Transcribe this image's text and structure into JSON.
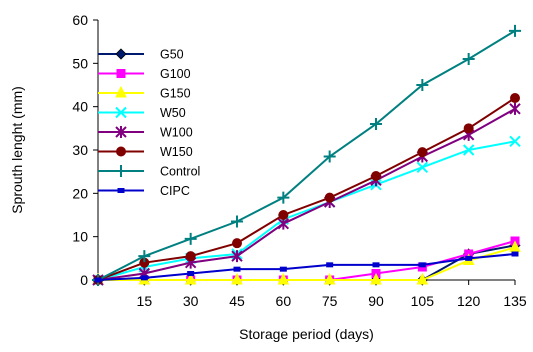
{
  "chart_data": {
    "type": "line",
    "title": "",
    "xlabel": "Storage period (days)",
    "ylabel": "Sprouth lenght (mm)",
    "ylim": [
      0,
      60
    ],
    "yticks": [
      "0",
      "10",
      "20",
      "30",
      "40",
      "50",
      "60"
    ],
    "x": [
      0,
      15,
      30,
      45,
      60,
      75,
      90,
      105,
      120,
      135
    ],
    "xtick_labels": [
      "",
      "15",
      "30",
      "45",
      "60",
      "75",
      "90",
      "105",
      "120",
      "135"
    ],
    "grid": false,
    "legend_position": "top-left",
    "series": [
      {
        "name": "G50",
        "color": "#001a6e",
        "marker": "diamond",
        "values": [
          0,
          0,
          0,
          0,
          0,
          0,
          0,
          0,
          6,
          8
        ]
      },
      {
        "name": "G100",
        "color": "#ff00ff",
        "marker": "square",
        "values": [
          0,
          0,
          0,
          0,
          0,
          0,
          1.5,
          3,
          6,
          9
        ]
      },
      {
        "name": "G150",
        "color": "#ffff00",
        "marker": "triangle",
        "values": [
          0,
          0,
          0,
          0,
          0,
          0,
          0,
          0,
          4.5,
          7.5
        ]
      },
      {
        "name": "W50",
        "color": "#00ffff",
        "marker": "x",
        "values": [
          0,
          3,
          5,
          6,
          14,
          18,
          22,
          26,
          30,
          32
        ]
      },
      {
        "name": "W100",
        "color": "#800080",
        "marker": "star",
        "values": [
          0,
          1.5,
          4,
          5.5,
          13,
          18,
          23,
          28.5,
          33.5,
          39.5
        ]
      },
      {
        "name": "W150",
        "color": "#800000",
        "marker": "circle",
        "values": [
          0,
          4,
          5.5,
          8.5,
          15,
          19,
          24,
          29.5,
          35,
          42
        ]
      },
      {
        "name": "Control",
        "color": "#008080",
        "marker": "plus",
        "values": [
          0,
          5.5,
          9.5,
          13.5,
          19,
          28.5,
          36,
          45,
          51,
          57.5
        ]
      },
      {
        "name": "CIPC",
        "color": "#0000cc",
        "marker": "dash",
        "values": [
          0,
          0.5,
          1.5,
          2.5,
          2.5,
          3.5,
          3.5,
          3.5,
          5,
          6
        ]
      }
    ]
  }
}
